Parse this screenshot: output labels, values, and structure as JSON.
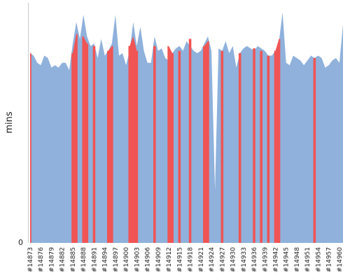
{
  "chart_data": {
    "type": "area",
    "ylabel": "mins",
    "y_tick_labels": [
      "0"
    ],
    "ylim": [
      0,
      100
    ],
    "x_tick_labels": [
      "#14873",
      "#14876",
      "#14879",
      "#14882",
      "#14885",
      "#14888",
      "#14891",
      "#14894",
      "#14897",
      "#14900",
      "#14903",
      "#14906",
      "#14909",
      "#14912",
      "#14915",
      "#14918",
      "#14921",
      "#14924",
      "#14927",
      "#14930",
      "#14933",
      "#14936",
      "#14939",
      "#14942",
      "#14945",
      "#14948",
      "#14951",
      "#14954",
      "#14957",
      "#14960"
    ],
    "x": [
      14873,
      14874,
      14875,
      14876,
      14877,
      14878,
      14879,
      14880,
      14881,
      14882,
      14883,
      14884,
      14885,
      14886,
      14887,
      14888,
      14889,
      14890,
      14891,
      14892,
      14893,
      14894,
      14895,
      14896,
      14897,
      14898,
      14899,
      14900,
      14901,
      14902,
      14903,
      14904,
      14905,
      14906,
      14907,
      14908,
      14909,
      14910,
      14911,
      14912,
      14913,
      14914,
      14915,
      14916,
      14917,
      14918,
      14919,
      14920,
      14921,
      14922,
      14923,
      14924,
      14925,
      14926,
      14927,
      14928,
      14929,
      14930,
      14931,
      14932,
      14933,
      14934,
      14935,
      14936,
      14937,
      14938,
      14939,
      14940,
      14941,
      14942,
      14943,
      14944,
      14945,
      14946,
      14947,
      14948,
      14949,
      14950,
      14951,
      14952,
      14953,
      14954,
      14955,
      14956,
      14957,
      14958,
      14959,
      14960,
      14961
    ],
    "series": [
      {
        "color": "#8fb1dc",
        "values": [
          79,
          78,
          75,
          74,
          78,
          77,
          73,
          74,
          73,
          75,
          75,
          72,
          83,
          92,
          85,
          95,
          86,
          82,
          83,
          77,
          85,
          78,
          80,
          83,
          95,
          78,
          79,
          74,
          80,
          92,
          82,
          90,
          80,
          75,
          75,
          86,
          80,
          81,
          77,
          76,
          79,
          81,
          82,
          80,
          84,
          82,
          80,
          79,
          80,
          83,
          86,
          80,
          22,
          81,
          80,
          84,
          79,
          82,
          73,
          79,
          81,
          82,
          81,
          80,
          82,
          81,
          80,
          78,
          78,
          80,
          84,
          96,
          75,
          74,
          78,
          77,
          76,
          74,
          76,
          78,
          77,
          78,
          77,
          73,
          74,
          76,
          77,
          75,
          91
        ],
        "fill": true
      },
      {
        "color": "#f05454",
        "values": [
          79,
          0,
          0,
          0,
          0,
          0,
          0,
          0,
          0,
          0,
          0,
          0,
          79,
          87,
          0,
          86,
          83,
          0,
          82,
          0,
          0,
          0,
          80,
          82,
          0,
          0,
          0,
          0,
          82,
          86,
          80,
          0,
          0,
          0,
          0,
          82,
          0,
          0,
          0,
          82,
          79,
          0,
          80,
          0,
          0,
          85,
          0,
          0,
          0,
          82,
          84,
          0,
          0,
          0,
          80,
          0,
          0,
          0,
          0,
          79,
          0,
          0,
          0,
          81,
          0,
          80,
          0,
          78,
          0,
          80,
          85,
          0,
          0,
          0,
          0,
          0,
          0,
          0,
          0,
          0,
          77,
          0,
          0,
          0,
          0,
          0,
          0,
          0,
          0
        ]
      }
    ],
    "grid": false,
    "legend": "none"
  }
}
